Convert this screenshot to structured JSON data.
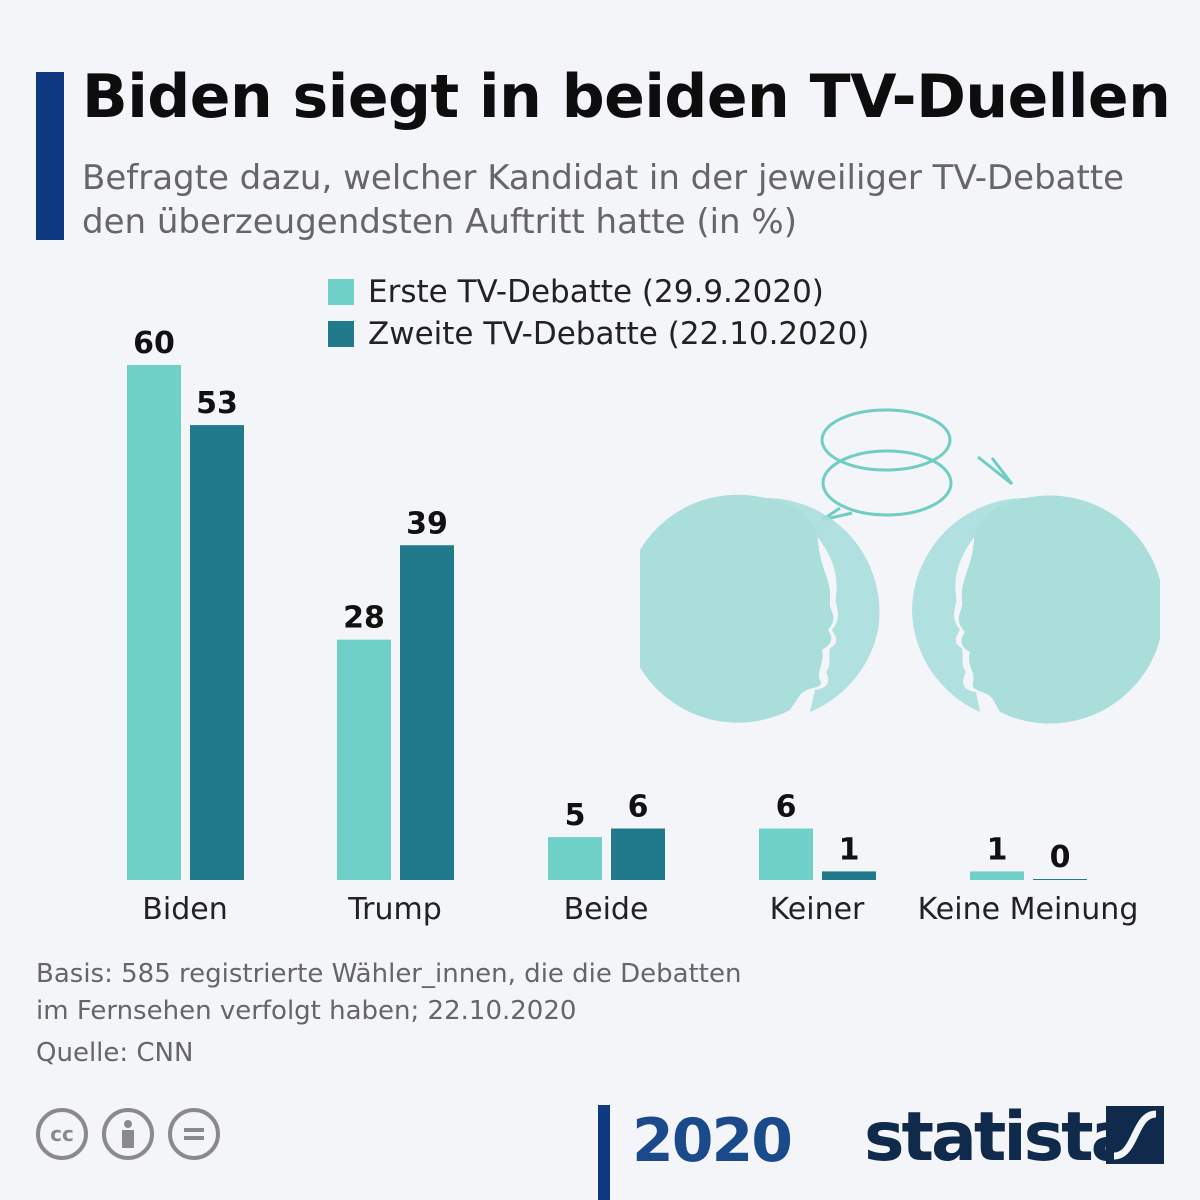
{
  "title": "Biden siegt in beiden TV-Duellen",
  "subtitle": "Befragte dazu, welcher Kandidat in der jeweiliger TV-Debatte den überzeugendsten Auftritt hatte (in %)",
  "colors": {
    "accent": "#0f3a82",
    "series1": "#6fd0c8",
    "series2": "#217a8b",
    "illustration": "#a9dedb"
  },
  "chart_data": {
    "type": "bar",
    "title": "Biden siegt in beiden TV-Duellen",
    "categories": [
      "Biden",
      "Trump",
      "Beide",
      "Keiner",
      "Keine Meinung"
    ],
    "series": [
      {
        "name": "Erste TV-Debatte (29.9.2020)",
        "values": [
          60,
          28,
          5,
          6,
          1
        ]
      },
      {
        "name": "Zweite TV-Debatte (22.10.2020)",
        "values": [
          53,
          39,
          6,
          1,
          0
        ]
      }
    ],
    "ylim": [
      0,
      60
    ],
    "grid": false,
    "legend": "top-center",
    "data_labels": true
  },
  "notes": {
    "basis_line1": "Basis: 585 registrierte Wähler_innen, die die Debatten",
    "basis_line2": "im Fernsehen verfolgt haben; 22.10.2020",
    "source": "Quelle: CNN"
  },
  "footer": {
    "license_icons": [
      "cc-icon",
      "attribution-icon",
      "no-derivatives-icon"
    ],
    "cc_text": "cc",
    "logo_2020": "2020",
    "brand": "statista"
  }
}
